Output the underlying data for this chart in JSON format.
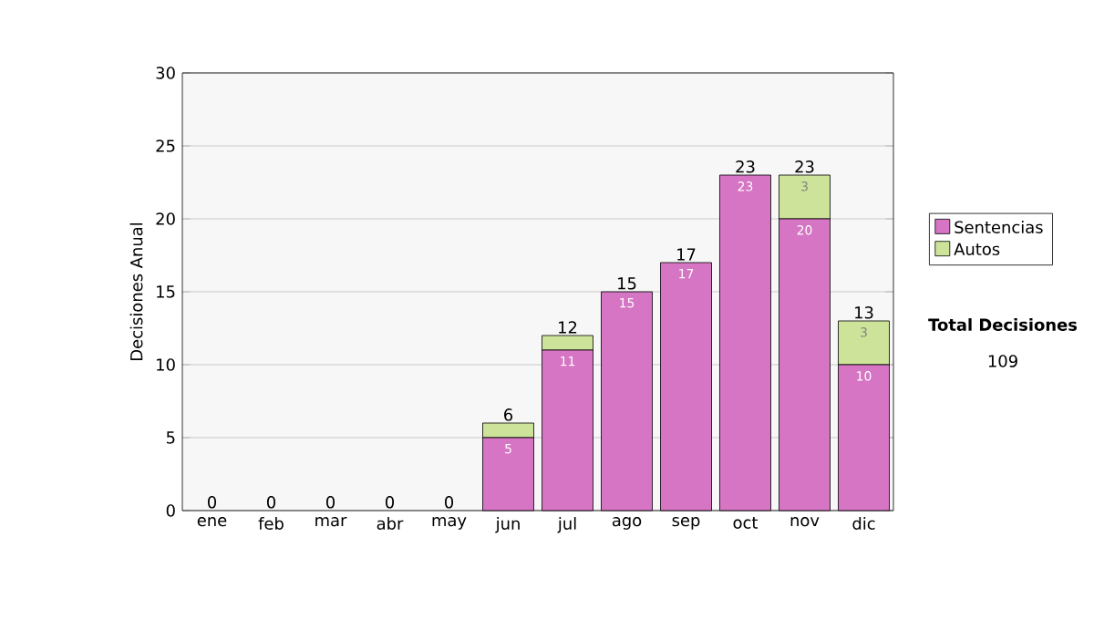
{
  "chart_data": {
    "type": "bar",
    "stacked": true,
    "ylabel": "Decisiones Anual",
    "categories": [
      "ene",
      "feb",
      "mar",
      "abr",
      "may",
      "jun",
      "jul",
      "ago",
      "sep",
      "oct",
      "nov",
      "dic"
    ],
    "series": [
      {
        "name": "Sentencias",
        "color": "#d575c3",
        "values": [
          0,
          0,
          0,
          0,
          0,
          5,
          11,
          15,
          17,
          23,
          20,
          10
        ],
        "value_labels": [
          null,
          null,
          null,
          null,
          null,
          "5",
          "11",
          "15",
          "17",
          "23",
          "20",
          "10"
        ]
      },
      {
        "name": "Autos",
        "color": "#cde39a",
        "values": [
          0,
          0,
          0,
          0,
          0,
          1,
          1,
          0,
          0,
          0,
          3,
          3
        ],
        "value_labels": [
          null,
          null,
          null,
          null,
          null,
          null,
          null,
          null,
          null,
          null,
          "3",
          "3"
        ]
      }
    ],
    "totals": [
      "0",
      "0",
      "0",
      "0",
      "0",
      "6",
      "12",
      "15",
      "17",
      "23",
      "23",
      "13"
    ],
    "ylim": [
      0,
      30
    ],
    "yticks": [
      0,
      5,
      10,
      15,
      20,
      25,
      30
    ],
    "grid": "y",
    "legend": "right",
    "annotations": [
      "Total Decisiones",
      "109"
    ]
  }
}
